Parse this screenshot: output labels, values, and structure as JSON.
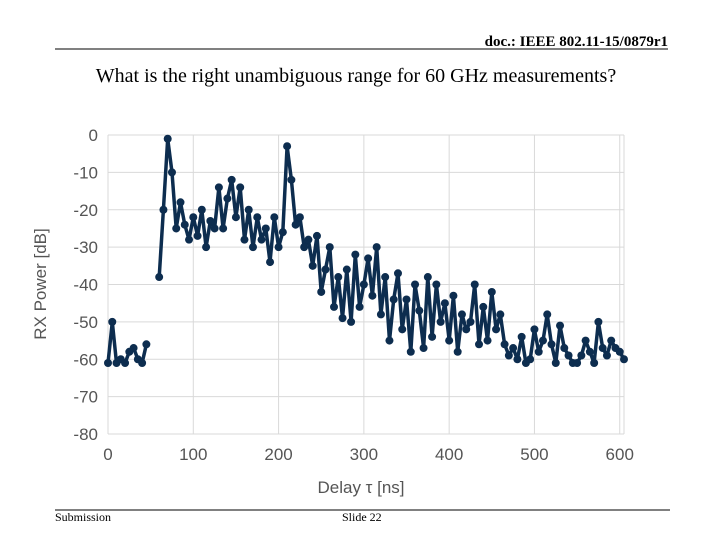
{
  "header": {
    "doc": "doc.: IEEE 802.11-15/0879r1",
    "title": "What is the right unambiguous range for 60 GHz measurements?"
  },
  "footer": {
    "left": "Submission",
    "center": "Slide 22"
  },
  "chart_data": {
    "type": "line",
    "xlabel": "Delay  τ [ns]",
    "ylabel": "RX Power [dB]",
    "color": "#0d2d4f",
    "grid": true,
    "markers": true,
    "xlim": [
      0,
      605
    ],
    "xticks": [
      0,
      100,
      200,
      300,
      400,
      500,
      600
    ],
    "ylim": [
      -80,
      0
    ],
    "yticks": [
      0,
      -10,
      -20,
      -30,
      -40,
      -50,
      -60,
      -70,
      -80
    ],
    "x": [
      0,
      5,
      10,
      15,
      20,
      25,
      30,
      35,
      40,
      45,
      50,
      55,
      60,
      65,
      70,
      75,
      80,
      85,
      90,
      95,
      100,
      105,
      110,
      115,
      120,
      125,
      130,
      135,
      140,
      145,
      150,
      155,
      160,
      165,
      170,
      175,
      180,
      185,
      190,
      195,
      200,
      205,
      210,
      215,
      220,
      225,
      230,
      235,
      240,
      245,
      250,
      255,
      260,
      265,
      270,
      275,
      280,
      285,
      290,
      295,
      300,
      305,
      310,
      315,
      320,
      325,
      330,
      335,
      340,
      345,
      350,
      355,
      360,
      365,
      370,
      375,
      380,
      385,
      390,
      395,
      400,
      405,
      410,
      415,
      420,
      425,
      430,
      435,
      440,
      445,
      450,
      455,
      460,
      465,
      470,
      475,
      480,
      485,
      490,
      495,
      500,
      505,
      510,
      515,
      520,
      525,
      530,
      535,
      540,
      545,
      550,
      555,
      560,
      565,
      570,
      575,
      580,
      585,
      590,
      595,
      600,
      605
    ],
    "values": [
      -61,
      -50,
      -61,
      -60,
      -61,
      -58,
      -57,
      -60,
      -61,
      -56,
      null,
      null,
      -38,
      -20,
      -1,
      -10,
      -25,
      -18,
      -24,
      -28,
      -22,
      -27,
      -20,
      -30,
      -23,
      -25,
      -14,
      -25,
      -17,
      -12,
      -22,
      -14,
      -28,
      -20,
      -30,
      -22,
      -28,
      -25,
      -34,
      -22,
      -30,
      -26,
      -3,
      -12,
      -24,
      -22,
      -30,
      -28,
      -35,
      -27,
      -42,
      -36,
      -30,
      -46,
      -38,
      -49,
      -36,
      -50,
      -32,
      -46,
      -40,
      -33,
      -43,
      -30,
      -48,
      -38,
      -55,
      -44,
      -37,
      -52,
      -44,
      -58,
      -40,
      -47,
      -57,
      -38,
      -54,
      -40,
      -50,
      -45,
      -55,
      -43,
      -58,
      -48,
      -52,
      -50,
      -40,
      -56,
      -46,
      -55,
      -42,
      -52,
      -48,
      -56,
      -59,
      -57,
      -60,
      -54,
      -61,
      -60,
      -52,
      -58,
      -55,
      -48,
      -56,
      -61,
      -51,
      -57,
      -59,
      -61,
      -61,
      -59,
      -55,
      -58,
      -61,
      -50,
      -57,
      -59,
      -55,
      -57,
      -58,
      -60
    ]
  }
}
